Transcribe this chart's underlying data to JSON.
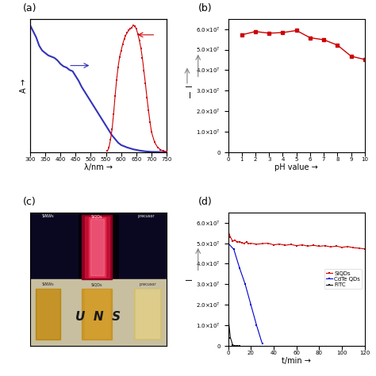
{
  "panel_a": {
    "absorption_x": [
      300,
      310,
      320,
      330,
      340,
      350,
      360,
      370,
      380,
      390,
      400,
      410,
      420,
      430,
      440,
      450,
      460,
      470,
      480,
      490,
      500,
      510,
      520,
      530,
      540,
      550,
      560,
      570,
      580,
      590,
      600,
      620,
      640,
      660,
      680,
      700,
      720,
      740,
      750
    ],
    "absorption_y": [
      1.05,
      1.0,
      0.95,
      0.88,
      0.84,
      0.82,
      0.8,
      0.79,
      0.78,
      0.76,
      0.73,
      0.71,
      0.7,
      0.68,
      0.67,
      0.63,
      0.59,
      0.54,
      0.5,
      0.46,
      0.42,
      0.38,
      0.34,
      0.3,
      0.26,
      0.22,
      0.18,
      0.14,
      0.11,
      0.08,
      0.06,
      0.04,
      0.025,
      0.015,
      0.008,
      0.004,
      0.003,
      0.002,
      0.002
    ],
    "emission_x": [
      555,
      560,
      565,
      570,
      575,
      580,
      585,
      590,
      595,
      600,
      605,
      610,
      615,
      620,
      625,
      630,
      635,
      640,
      645,
      650,
      655,
      660,
      665,
      670,
      675,
      680,
      685,
      690,
      695,
      700,
      710,
      720,
      730,
      740,
      750
    ],
    "emission_y": [
      0.01,
      0.04,
      0.1,
      0.18,
      0.3,
      0.44,
      0.57,
      0.67,
      0.75,
      0.8,
      0.85,
      0.89,
      0.92,
      0.94,
      0.96,
      0.97,
      0.98,
      1.0,
      0.99,
      0.97,
      0.93,
      0.88,
      0.82,
      0.74,
      0.64,
      0.54,
      0.43,
      0.33,
      0.24,
      0.16,
      0.08,
      0.04,
      0.02,
      0.01,
      0.005
    ],
    "absorption_color": "#3333bb",
    "emission_color": "#cc0000",
    "xlabel": "λ/nm →",
    "ylabel_left": "A →",
    "xlim": [
      300,
      750
    ],
    "xticks": [
      300,
      350,
      400,
      450,
      500,
      550,
      600,
      650,
      700,
      750
    ]
  },
  "panel_b": {
    "ph_values": [
      1,
      2,
      3,
      4,
      5,
      6,
      7,
      8,
      9,
      10
    ],
    "intensity": [
      57200000.0,
      58800000.0,
      58000000.0,
      58300000.0,
      59300000.0,
      55800000.0,
      54800000.0,
      52200000.0,
      46800000.0,
      45200000.0
    ],
    "color": "#cc0000",
    "xlabel": "pH value →",
    "ylabel": "I",
    "ylim": [
      0,
      65000000.0
    ],
    "yticks": [
      0,
      10000000.0,
      20000000.0,
      30000000.0,
      40000000.0,
      50000000.0,
      60000000.0
    ],
    "xticks": [
      0,
      1,
      2,
      3,
      4,
      5,
      6,
      7,
      8,
      9,
      10
    ],
    "xlim": [
      0,
      10
    ]
  },
  "panel_d": {
    "siqds_t": [
      0,
      2,
      4,
      6,
      8,
      10,
      12,
      14,
      16,
      18,
      20,
      25,
      30,
      35,
      40,
      45,
      50,
      55,
      60,
      65,
      70,
      75,
      80,
      85,
      90,
      95,
      100,
      105,
      110,
      115,
      120
    ],
    "siqds_i": [
      56000000.0,
      53000000.0,
      51000000.0,
      51500000.0,
      50500000.0,
      50800000.0,
      50200000.0,
      50000000.0,
      50500000.0,
      49800000.0,
      50000000.0,
      49500000.0,
      49800000.0,
      50000000.0,
      49200000.0,
      49600000.0,
      49000000.0,
      49400000.0,
      48800000.0,
      49200000.0,
      48600000.0,
      49000000.0,
      48500000.0,
      48800000.0,
      48200000.0,
      48600000.0,
      48000000.0,
      48400000.0,
      47800000.0,
      47600000.0,
      47200000.0
    ],
    "cdte_t": [
      0,
      5,
      10,
      15,
      20,
      25,
      30
    ],
    "cdte_i": [
      50000000.0,
      47000000.0,
      38000000.0,
      30000000.0,
      20000000.0,
      10000000.0,
      1000000.0
    ],
    "fitc_t": [
      0,
      2,
      4,
      6,
      8,
      10
    ],
    "fitc_i": [
      14000000.0,
      4000000.0,
      500000.0,
      100000.0,
      50000.0,
      20000.0
    ],
    "siqds_color": "#cc0000",
    "cdte_color": "#0000cc",
    "fitc_color": "#111111",
    "xlabel": "t/min →",
    "ylabel": "I",
    "ylim": [
      0,
      65000000.0
    ],
    "yticks": [
      0,
      10000000.0,
      20000000.0,
      30000000.0,
      40000000.0,
      50000000.0,
      60000000.0
    ],
    "xlim": [
      0,
      120
    ],
    "xticks": [
      0,
      20,
      40,
      60,
      80,
      100,
      120
    ],
    "legend_labels": [
      "SiQDs",
      "CdTe QDs",
      "FITC"
    ]
  },
  "tick_fontsize": 6,
  "axis_label_fontsize": 7,
  "panel_label_fontsize": 9
}
